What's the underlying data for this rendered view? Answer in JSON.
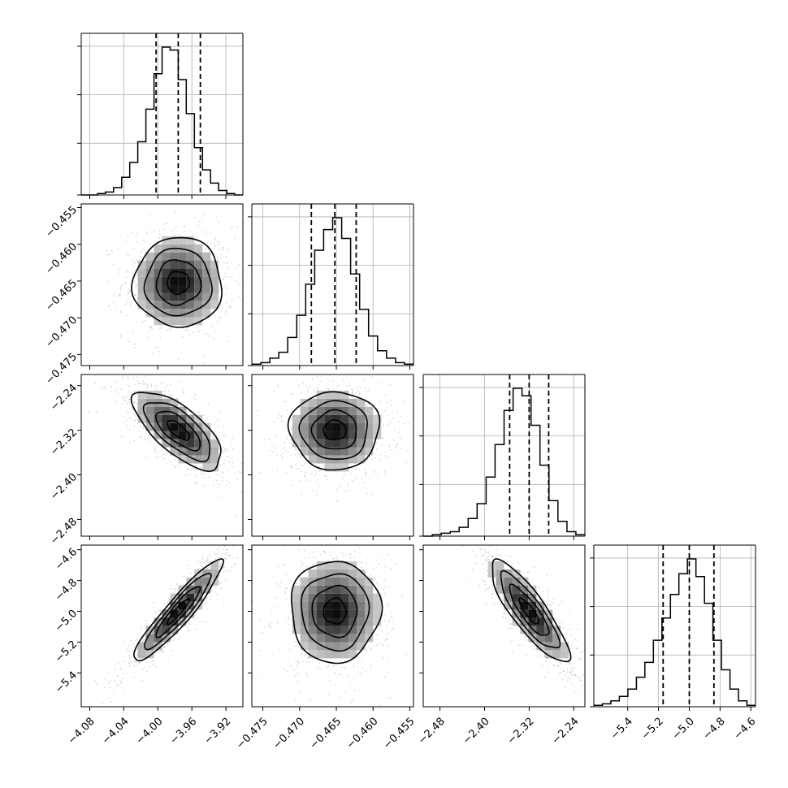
{
  "chart_data": {
    "type": "corner",
    "grid": true,
    "parameters": [
      {
        "range": [
          -4.09,
          -3.9
        ],
        "ticks": [
          "−4.08",
          "−4.04",
          "−4.00",
          "−3.96",
          "−3.92"
        ],
        "tick_values": [
          -4.08,
          -4.04,
          -4.0,
          -3.96,
          -3.92
        ],
        "quantiles": [
          -4.002,
          -3.976,
          -3.95
        ],
        "histogram": [
          0,
          0,
          1,
          2,
          5,
          12,
          22,
          36,
          58,
          82,
          100,
          98,
          78,
          55,
          32,
          17,
          8,
          3,
          1,
          0
        ]
      },
      {
        "range": [
          -0.4765,
          -0.4545
        ],
        "ticks": [
          "−0.475",
          "−0.470",
          "−0.465",
          "−0.460",
          "−0.455"
        ],
        "tick_values": [
          -0.475,
          -0.47,
          -0.465,
          -0.46,
          -0.455
        ],
        "quantiles": [
          -0.4684,
          -0.4652,
          -0.4623
        ],
        "histogram": [
          1,
          2,
          5,
          9,
          19,
          34,
          55,
          78,
          92,
          100,
          86,
          62,
          38,
          20,
          10,
          5,
          2,
          1
        ]
      },
      {
        "range": [
          -2.51,
          -2.22
        ],
        "ticks": [
          "−2.48",
          "−2.40",
          "−2.32",
          "−2.24"
        ],
        "tick_values": [
          -2.48,
          -2.4,
          -2.32,
          -2.24
        ],
        "quantiles": [
          -2.355,
          -2.32,
          -2.285
        ],
        "histogram": [
          0,
          1,
          2,
          3,
          6,
          12,
          22,
          40,
          62,
          85,
          100,
          95,
          75,
          48,
          24,
          10,
          3,
          1
        ]
      },
      {
        "range": [
          -5.62,
          -4.57
        ],
        "ticks": [
          "−5.4",
          "−5.2",
          "−5.0",
          "−4.8",
          "−4.6"
        ],
        "tick_values": [
          -5.4,
          -5.2,
          -5.0,
          -4.8,
          -4.6
        ],
        "quantiles": [
          -5.17,
          -5.0,
          -4.84
        ],
        "histogram": [
          1,
          2,
          4,
          7,
          12,
          20,
          30,
          45,
          60,
          76,
          90,
          100,
          88,
          70,
          45,
          25,
          12,
          4,
          1
        ]
      }
    ],
    "correlations": [
      [
        1.0,
        0.0,
        -0.7,
        0.93
      ],
      [
        0.0,
        1.0,
        0.0,
        0.0
      ],
      [
        -0.7,
        0.0,
        1.0,
        -0.85
      ],
      [
        0.93,
        0.0,
        -0.85,
        1.0
      ]
    ],
    "colors": {
      "line": "#000000",
      "points": "#bbbbbb",
      "grid": "#b0b0b0"
    }
  }
}
